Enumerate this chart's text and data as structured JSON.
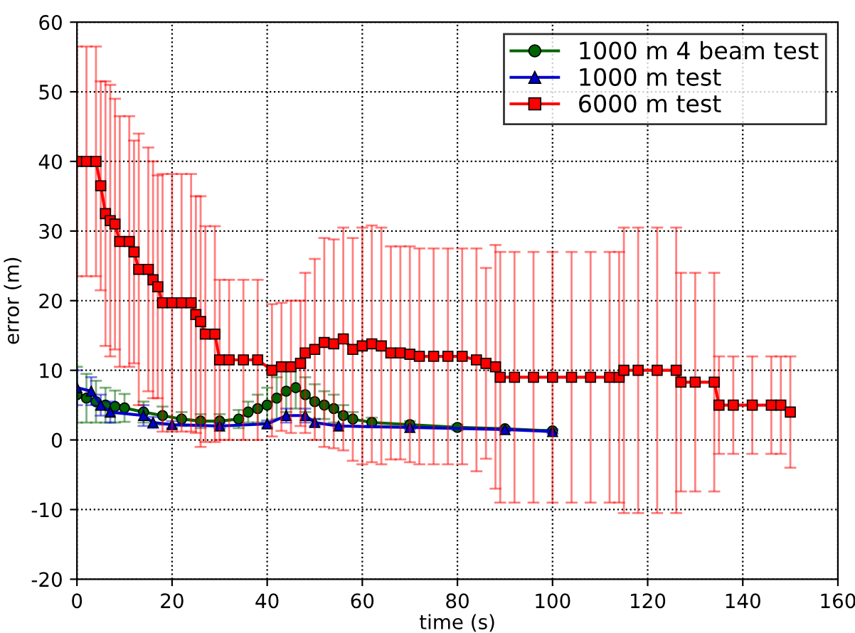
{
  "chart_data": {
    "type": "line",
    "xlabel": "time (s)",
    "ylabel": "error (m)",
    "xlim": [
      0,
      160
    ],
    "ylim": [
      -20,
      60
    ],
    "xticks": [
      0,
      20,
      40,
      60,
      80,
      100,
      120,
      140,
      160
    ],
    "yticks": [
      -20,
      -10,
      0,
      10,
      20,
      30,
      40,
      50,
      60
    ],
    "grid": true,
    "legend": "top right",
    "series": [
      {
        "name": "1000 m 4 beam test",
        "color": "#006400",
        "marker": "circle",
        "x": [
          0,
          2,
          4,
          6,
          8,
          10,
          14,
          18,
          22,
          26,
          30,
          34,
          36,
          38,
          40,
          42,
          44,
          46,
          48,
          50,
          52,
          54,
          56,
          58,
          62,
          70,
          80,
          90,
          100
        ],
        "values": [
          6.5,
          6,
          5.5,
          5,
          4.8,
          4.6,
          4,
          3.5,
          3,
          2.7,
          2.7,
          3,
          4,
          4.5,
          5,
          6,
          7,
          7.5,
          6.5,
          5.5,
          5,
          4.5,
          3.5,
          3,
          2.5,
          2.2,
          1.8,
          1.6,
          1.3
        ],
        "errors": [
          4,
          3.5,
          3,
          2.5,
          2.3,
          2,
          1.5,
          1.3,
          1,
          1,
          1,
          1.3,
          1.5,
          2,
          2.5,
          3,
          3,
          3,
          2.5,
          2.5,
          2,
          2,
          1.5,
          1,
          0.7,
          0.5,
          0.4,
          null,
          null
        ]
      },
      {
        "name": "1000 m test",
        "color": "#0000cc",
        "marker": "triangle",
        "x": [
          0,
          3,
          5,
          7,
          14,
          16,
          20,
          30,
          40,
          44,
          48,
          50,
          55,
          70,
          90,
          100
        ],
        "values": [
          7.5,
          7,
          5,
          4,
          3.5,
          2.5,
          2.2,
          2,
          2.3,
          3.5,
          3.5,
          2.5,
          2,
          1.8,
          1.5,
          1.2
        ],
        "errors": [
          2.5,
          2,
          1.5,
          1.5,
          1.5,
          0.8,
          0.5,
          0.4,
          0.5,
          1,
          1,
          0.5,
          0.3,
          0.3,
          0.3,
          0.3
        ]
      },
      {
        "name": "6000 m test",
        "color": "#ff0000",
        "marker": "square",
        "x": [
          0,
          2,
          4,
          5,
          6,
          7,
          8,
          9,
          11,
          12,
          13,
          15,
          16,
          17,
          18,
          20,
          22,
          24,
          25,
          26,
          27,
          29,
          30,
          32,
          35,
          38,
          41,
          43,
          45,
          47,
          48,
          50,
          52,
          54,
          56,
          58,
          60,
          62,
          64,
          66,
          68,
          70,
          72,
          75,
          78,
          81,
          84,
          86,
          88,
          89,
          92,
          96,
          100,
          104,
          108,
          112,
          114,
          115,
          118,
          122,
          126,
          127,
          130,
          134,
          135,
          138,
          142,
          146,
          148,
          150
        ],
        "values": [
          40,
          40,
          40,
          36.5,
          32.5,
          31.5,
          31,
          28.5,
          28.5,
          27,
          24.5,
          24.5,
          23,
          22,
          19.7,
          19.7,
          19.7,
          19.7,
          18,
          17,
          15.2,
          15.2,
          11.5,
          11.5,
          11.5,
          11.5,
          10,
          10.5,
          10.5,
          11,
          12.5,
          13,
          14,
          13.8,
          14.5,
          13,
          13.5,
          13.8,
          13.5,
          12.5,
          12.5,
          12.3,
          12,
          12,
          12,
          12,
          11.5,
          11,
          10.5,
          9,
          9,
          9,
          9,
          9,
          9,
          9,
          9,
          10,
          10,
          10,
          10,
          8.3,
          8.3,
          8.3,
          5,
          5,
          5,
          5,
          5,
          4
        ],
        "errors": [
          16.5,
          16.5,
          16.5,
          15,
          19,
          19.5,
          18,
          18,
          18,
          16,
          19.5,
          17.5,
          17,
          16,
          18.5,
          18.5,
          18.5,
          18.5,
          17,
          18,
          15.5,
          15.5,
          11.5,
          11.5,
          11.5,
          11.5,
          9.5,
          9.2,
          9.5,
          9,
          11.5,
          13,
          15,
          15,
          16,
          16,
          17,
          17,
          17,
          15.3,
          15.3,
          15.5,
          15.5,
          15.5,
          15.5,
          15.5,
          16,
          13.7,
          17.5,
          18,
          18,
          18,
          18,
          18,
          18,
          18,
          18,
          20.5,
          20.5,
          20.5,
          20.5,
          15.7,
          15.7,
          15.7,
          7,
          7,
          7,
          7,
          7,
          8
        ]
      }
    ]
  }
}
